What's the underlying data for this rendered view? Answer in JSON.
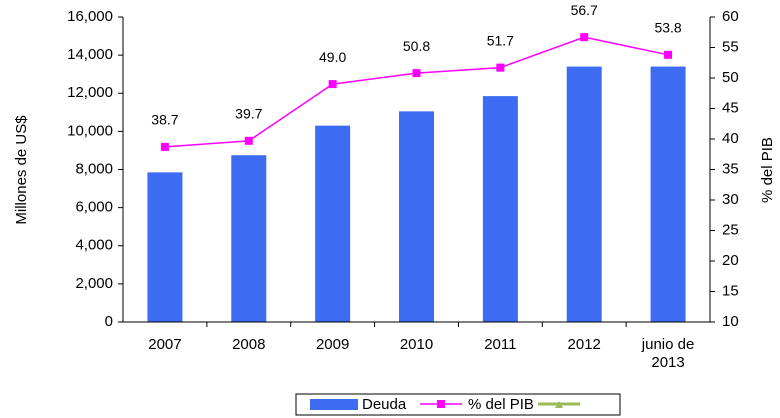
{
  "chart_data": {
    "type": "bar",
    "categories": [
      "2007",
      "2008",
      "2009",
      "2010",
      "2011",
      "2012",
      "junio de 2013"
    ],
    "ylabel": "Millones de US$",
    "y2label": "% del PIB",
    "ylim": [
      0,
      16000
    ],
    "yticks": [
      0,
      {
        "value": 2000,
        "label": "2,000"
      },
      {
        "value": 4000,
        "label": "4,000"
      },
      {
        "value": 6000,
        "label": "6,000"
      },
      {
        "value": 8000,
        "label": "8,000"
      },
      {
        "value": 10000,
        "label": "10,000"
      },
      {
        "value": 12000,
        "label": "12,000"
      },
      {
        "value": 14000,
        "label": "14,000"
      },
      {
        "value": 16000,
        "label": "16,000"
      }
    ],
    "y2lim": [
      10,
      60
    ],
    "y2ticks": [
      10,
      15,
      20,
      25,
      30,
      35,
      40,
      45,
      50,
      55,
      60
    ],
    "series": [
      {
        "name": "Deuda",
        "type": "bar",
        "color": "#3d6cf2",
        "values": [
          7850,
          8750,
          10300,
          11050,
          11850,
          13400,
          13400
        ]
      },
      {
        "name": "% del PIB",
        "type": "line",
        "axis": "y2",
        "color": "#ff00ff",
        "values": [
          38.7,
          39.7,
          49,
          50.8,
          51.7,
          56.7,
          53.8
        ],
        "value_labels": [
          "38.7",
          "39.7",
          "49.0",
          "50.8",
          "51.7",
          "56.7",
          "53.8"
        ]
      }
    ]
  }
}
